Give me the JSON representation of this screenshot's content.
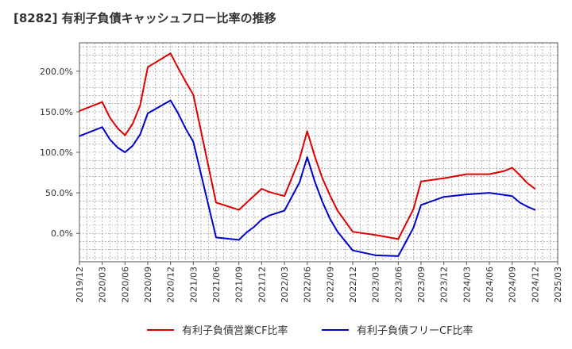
{
  "chart_data": {
    "type": "line",
    "title": "[8282]  有利子負債キャッシュフロー比率の推移",
    "xlabel": "",
    "ylabel": "",
    "ylim": [
      -35,
      235
    ],
    "yticks": [
      {
        "value": 200,
        "label": "200.0%"
      },
      {
        "value": 150,
        "label": "150.0%"
      },
      {
        "value": 100,
        "label": "100.0%"
      },
      {
        "value": 50,
        "label": "50.0%"
      },
      {
        "value": 0,
        "label": "0.0%"
      }
    ],
    "x_labels": [
      "2019/12",
      "2020/03",
      "2020/06",
      "2020/09",
      "2020/12",
      "2021/03",
      "2021/06",
      "2021/09",
      "2021/12",
      "2022/03",
      "2022/06",
      "2022/09",
      "2022/12",
      "2023/03",
      "2023/06",
      "2023/09",
      "2023/12",
      "2024/03",
      "2024/06",
      "2024/09",
      "2024/12",
      "2025/03"
    ],
    "grid": true,
    "legend_position": "bottom",
    "series": [
      {
        "name": "有利子負債営業CF比率",
        "color": "#dd0000",
        "points": [
          [
            "2019/12",
            151
          ],
          [
            "2020/03",
            162
          ],
          [
            "2020/04",
            143
          ],
          [
            "2020/05",
            130
          ],
          [
            "2020/06",
            121
          ],
          [
            "2020/07",
            135
          ],
          [
            "2020/08",
            158
          ],
          [
            "2020/09",
            205
          ],
          [
            "2020/12",
            222
          ],
          [
            "2021/01",
            204
          ],
          [
            "2021/02",
            187
          ],
          [
            "2021/03",
            171
          ],
          [
            "2021/06",
            38
          ],
          [
            "2021/09",
            29
          ],
          [
            "2021/12",
            55
          ],
          [
            "2022/01",
            51
          ],
          [
            "2022/03",
            46
          ],
          [
            "2022/05",
            92
          ],
          [
            "2022/06",
            126
          ],
          [
            "2022/07",
            95
          ],
          [
            "2022/08",
            68
          ],
          [
            "2022/09",
            47
          ],
          [
            "2022/10",
            28
          ],
          [
            "2022/12",
            2
          ],
          [
            "2023/03",
            -2
          ],
          [
            "2023/06",
            -7
          ],
          [
            "2023/08",
            30
          ],
          [
            "2023/09",
            64
          ],
          [
            "2023/12",
            68
          ],
          [
            "2024/03",
            73
          ],
          [
            "2024/06",
            73
          ],
          [
            "2024/08",
            77
          ],
          [
            "2024/09",
            81
          ],
          [
            "2024/10",
            72
          ],
          [
            "2024/11",
            62
          ],
          [
            "2024/12",
            55
          ]
        ]
      },
      {
        "name": "有利子負債フリーCF比率",
        "color": "#0000cc",
        "points": [
          [
            "2019/12",
            120
          ],
          [
            "2020/03",
            131
          ],
          [
            "2020/04",
            116
          ],
          [
            "2020/05",
            106
          ],
          [
            "2020/06",
            100
          ],
          [
            "2020/07",
            108
          ],
          [
            "2020/08",
            122
          ],
          [
            "2020/09",
            148
          ],
          [
            "2020/12",
            164
          ],
          [
            "2021/01",
            148
          ],
          [
            "2021/02",
            129
          ],
          [
            "2021/03",
            113
          ],
          [
            "2021/06",
            -5
          ],
          [
            "2021/09",
            -8
          ],
          [
            "2021/10",
            1
          ],
          [
            "2021/11",
            8
          ],
          [
            "2021/12",
            17
          ],
          [
            "2022/01",
            22
          ],
          [
            "2022/03",
            28
          ],
          [
            "2022/05",
            63
          ],
          [
            "2022/06",
            94
          ],
          [
            "2022/07",
            64
          ],
          [
            "2022/08",
            39
          ],
          [
            "2022/09",
            18
          ],
          [
            "2022/10",
            2
          ],
          [
            "2022/12",
            -21
          ],
          [
            "2023/03",
            -27
          ],
          [
            "2023/06",
            -28
          ],
          [
            "2023/08",
            7
          ],
          [
            "2023/09",
            35
          ],
          [
            "2023/12",
            45
          ],
          [
            "2024/03",
            48
          ],
          [
            "2024/06",
            50
          ],
          [
            "2024/09",
            46
          ],
          [
            "2024/10",
            38
          ],
          [
            "2024/11",
            33
          ],
          [
            "2024/12",
            29
          ]
        ]
      }
    ]
  }
}
